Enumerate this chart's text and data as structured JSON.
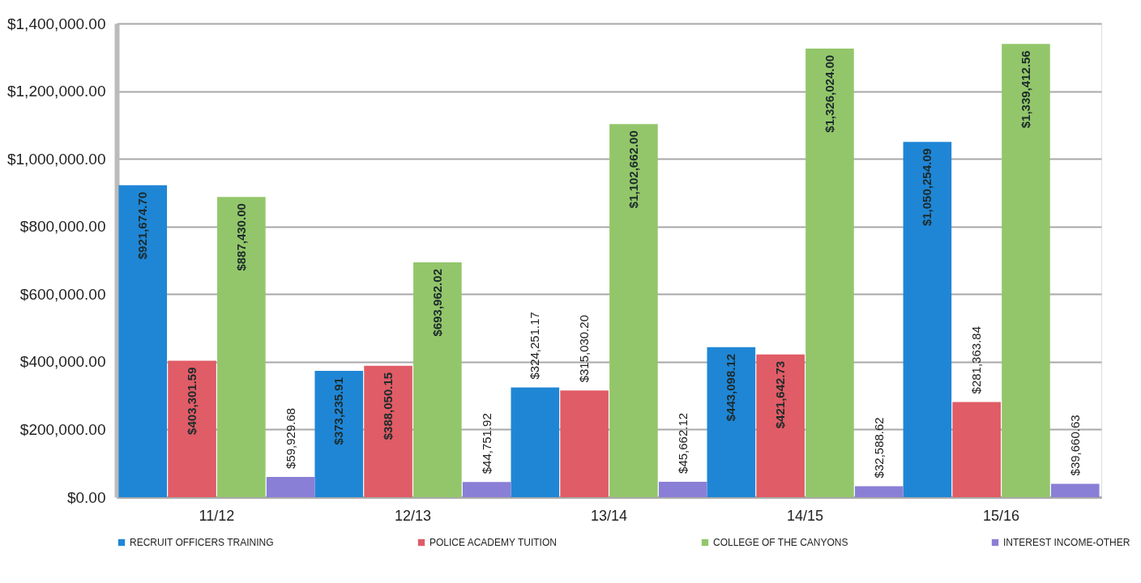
{
  "chart_data": {
    "type": "bar",
    "categories": [
      "11/12",
      "12/13",
      "13/14",
      "14/15",
      "15/16"
    ],
    "series": [
      {
        "name": "RECRUIT OFFICERS TRAINING",
        "color": "#1f86d6",
        "values": [
          921674.7,
          373235.91,
          324251.17,
          443098.12,
          1050254.09
        ],
        "value_labels": [
          "$921,674.70",
          "$373,235.91",
          "$324,251.17",
          "$443,098.12",
          "$1,050,254.09"
        ]
      },
      {
        "name": "POLICE ACADEMY TUITION",
        "color": "#e05c66",
        "values": [
          403301.59,
          388050.15,
          315030.2,
          421642.73,
          281363.84
        ],
        "value_labels": [
          "$403,301.59",
          "$388,050.15",
          "$315,030.20",
          "$421,642.73",
          "$281,363.84"
        ]
      },
      {
        "name": "COLLEGE OF THE CANYONS",
        "color": "#93c66a",
        "values": [
          887430.0,
          693962.02,
          1102662.0,
          1326024.0,
          1339412.56
        ],
        "value_labels": [
          "$887,430.00",
          "$693,962.02",
          "$1,102,662.00",
          "$1,326,024.00",
          "$1,339,412.56"
        ]
      },
      {
        "name": "INTEREST INCOME-OTHER",
        "color": "#8a7fd6",
        "values": [
          59929.68,
          44751.92,
          45662.12,
          32588.62,
          39660.63
        ],
        "value_labels": [
          "$59,929.68",
          "$44,751.92",
          "$45,662.12",
          "$32,588.62",
          "$39,660.63"
        ]
      }
    ],
    "ylim": [
      0,
      1400000
    ],
    "yticks": [
      {
        "value": 0,
        "label": "$0.00"
      },
      {
        "value": 200000,
        "label": "$200,000.00"
      },
      {
        "value": 400000,
        "label": "$400,000.00"
      },
      {
        "value": 600000,
        "label": "$600,000.00"
      },
      {
        "value": 800000,
        "label": "$800,000.00"
      },
      {
        "value": 1000000,
        "label": "$1,000,000.00"
      },
      {
        "value": 1200000,
        "label": "$1,200,000.00"
      },
      {
        "value": 1400000,
        "label": "$1,400,000.00"
      }
    ],
    "grid": "y",
    "legend": "bottom"
  }
}
